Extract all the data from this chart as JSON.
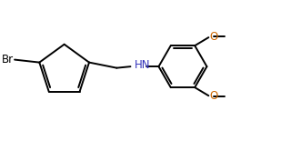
{
  "bg_color": "#ffffff",
  "line_color": "#000000",
  "hn_color": "#3333bb",
  "o_color": "#cc6600",
  "line_width": 1.4,
  "dbo": 0.012,
  "font_size": 8.5,
  "figsize": [
    3.31,
    1.55
  ],
  "dpi": 100,
  "xlim": [
    0,
    1
  ],
  "ylim": [
    0,
    1
  ]
}
